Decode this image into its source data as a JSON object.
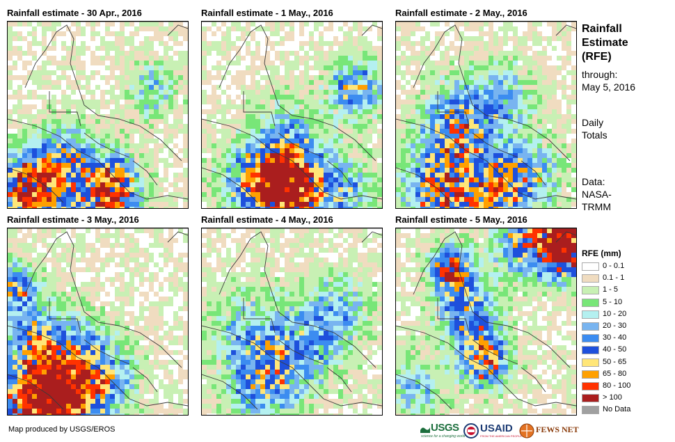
{
  "panels": [
    {
      "title": "Rainfall estimate - 30 Apr., 2016",
      "seed": 11
    },
    {
      "title": "Rainfall estimate - 1 May., 2016",
      "seed": 23
    },
    {
      "title": "Rainfall estimate - 2 May., 2016",
      "seed": 37
    },
    {
      "title": "Rainfall estimate - 3 May., 2016",
      "seed": 41
    },
    {
      "title": "Rainfall estimate - 4 May., 2016",
      "seed": 53
    },
    {
      "title": "Rainfall estimate - 5 May., 2016",
      "seed": 67
    }
  ],
  "side": {
    "title_line1": "Rainfall",
    "title_line2": "Estimate",
    "title_line3": "(RFE)",
    "through_label": "through:",
    "through_date": "May 5, 2016",
    "daily_line1": "Daily",
    "daily_line2": "Totals",
    "data_line1": "Data:",
    "data_line2": "NASA-",
    "data_line3": "TRMM"
  },
  "legend": {
    "title": "RFE (mm)",
    "items": [
      {
        "label": "0 - 0.1",
        "color": "#ffffff"
      },
      {
        "label": "0.1 - 1",
        "color": "#f0dcc0"
      },
      {
        "label": "1 - 5",
        "color": "#c8f0b4"
      },
      {
        "label": "5 - 10",
        "color": "#78e678"
      },
      {
        "label": "10 - 20",
        "color": "#b4f0f0"
      },
      {
        "label": "20 - 30",
        "color": "#78b4f0"
      },
      {
        "label": "30 - 40",
        "color": "#3c8cf0"
      },
      {
        "label": "40 - 50",
        "color": "#1e50dc"
      },
      {
        "label": "50 - 65",
        "color": "#ffe678"
      },
      {
        "label": "65 - 80",
        "color": "#ffa000"
      },
      {
        "label": "80 - 100",
        "color": "#ff3200"
      },
      {
        "label": "> 100",
        "color": "#aa1e1e"
      },
      {
        "label": "No Data",
        "color": "#a0a0a0"
      }
    ]
  },
  "credit": "Map produced by USGS/EROS",
  "logos": {
    "usgs": "USGS",
    "usgs_tagline": "science for a changing world",
    "usaid": "USAID",
    "usaid_tagline": "FROM THE AMERICAN PEOPLE",
    "fewsnet": "FEWS NET"
  }
}
